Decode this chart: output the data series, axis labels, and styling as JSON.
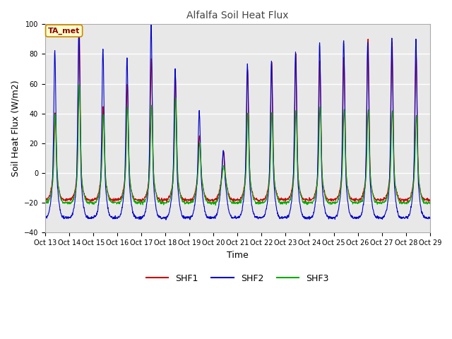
{
  "title": "Alfalfa Soil Heat Flux",
  "ylabel": "Soil Heat Flux (W/m2)",
  "xlabel": "Time",
  "annotation": "TA_met",
  "legend": [
    "SHF1",
    "SHF2",
    "SHF3"
  ],
  "colors": [
    "#cc0000",
    "#0000cc",
    "#00aa00"
  ],
  "ylim": [
    -40,
    100
  ],
  "xlim": [
    0,
    16
  ],
  "xtick_positions": [
    0,
    1,
    2,
    3,
    4,
    5,
    6,
    7,
    8,
    9,
    10,
    11,
    12,
    13,
    14,
    15,
    16
  ],
  "xtick_labels": [
    "Oct 13",
    "Oct 14",
    "Oct 15",
    "Oct 16",
    "Oct 17",
    "Oct 18",
    "Oct 19",
    "Oct 20",
    "Oct 21",
    "Oct 22",
    "Oct 23",
    "Oct 24",
    "Oct 25",
    "Oct 26",
    "Oct 27",
    "Oct 28",
    "Oct 29"
  ],
  "bg_color": "#ffffff",
  "plot_bg": "#e8e8e8",
  "grid_color": "#ffffff",
  "n_days": 16,
  "samples_per_day": 96,
  "amp1": [
    41,
    100,
    45,
    60,
    77,
    65,
    25,
    15,
    70,
    75,
    80,
    75,
    78,
    90,
    88,
    80
  ],
  "amp2": [
    82,
    98,
    83,
    78,
    100,
    70,
    42,
    15,
    73,
    75,
    81,
    88,
    90,
    88,
    90,
    90
  ],
  "amp3": [
    40,
    60,
    40,
    45,
    45,
    50,
    20,
    5,
    40,
    41,
    42,
    45,
    43,
    42,
    42,
    39
  ],
  "night1": -18,
  "night2": -30,
  "night3": -20,
  "title_fontsize": 10,
  "label_fontsize": 9,
  "tick_fontsize": 7,
  "legend_fontsize": 9,
  "annotation_fontsize": 8,
  "linewidth": 0.8
}
